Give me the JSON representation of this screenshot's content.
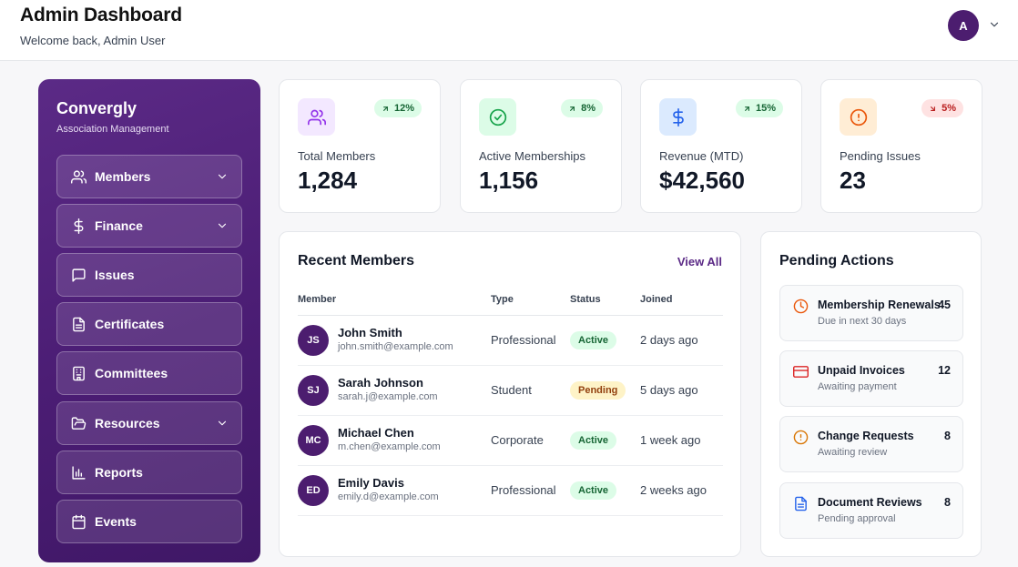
{
  "header": {
    "title": "Admin Dashboard",
    "subtitle": "Welcome back, Admin User",
    "avatar_initial": "A"
  },
  "sidebar": {
    "brand": "Convergly",
    "brand_sub": "Association Management",
    "items": [
      {
        "label": "Members",
        "icon": "users-icon",
        "has_chevron": true
      },
      {
        "label": "Finance",
        "icon": "dollar-icon",
        "has_chevron": true
      },
      {
        "label": "Issues",
        "icon": "message-square-icon",
        "has_chevron": false
      },
      {
        "label": "Certificates",
        "icon": "file-text-icon",
        "has_chevron": false
      },
      {
        "label": "Committees",
        "icon": "building-icon",
        "has_chevron": false
      },
      {
        "label": "Resources",
        "icon": "folder-open-icon",
        "has_chevron": true
      },
      {
        "label": "Reports",
        "icon": "bar-chart-icon",
        "has_chevron": false
      },
      {
        "label": "Events",
        "icon": "calendar-icon",
        "has_chevron": false
      }
    ]
  },
  "stats": [
    {
      "label": "Total Members",
      "value": "1,284",
      "trend": "12%",
      "direction": "up",
      "icon": "users-icon",
      "icon_bg": "#f3e8ff",
      "icon_color": "#9333ea"
    },
    {
      "label": "Active Memberships",
      "value": "1,156",
      "trend": "8%",
      "direction": "up",
      "icon": "check-circle-icon",
      "icon_bg": "#dcfce7",
      "icon_color": "#16a34a"
    },
    {
      "label": "Revenue (MTD)",
      "value": "$42,560",
      "trend": "15%",
      "direction": "up",
      "icon": "dollar-icon",
      "icon_bg": "#dbeafe",
      "icon_color": "#2563eb"
    },
    {
      "label": "Pending Issues",
      "value": "23",
      "trend": "5%",
      "direction": "down",
      "icon": "alert-circle-icon",
      "icon_bg": "#ffedd5",
      "icon_color": "#ea580c"
    }
  ],
  "recent_members": {
    "title": "Recent Members",
    "view_all": "View All",
    "columns": {
      "member": "Member",
      "type": "Type",
      "status": "Status",
      "joined": "Joined"
    },
    "rows": [
      {
        "initials": "JS",
        "name": "John Smith",
        "email": "john.smith@example.com",
        "type": "Professional",
        "status": "Active",
        "joined": "2 days ago"
      },
      {
        "initials": "SJ",
        "name": "Sarah Johnson",
        "email": "sarah.j@example.com",
        "type": "Student",
        "status": "Pending",
        "joined": "5 days ago"
      },
      {
        "initials": "MC",
        "name": "Michael Chen",
        "email": "m.chen@example.com",
        "type": "Corporate",
        "status": "Active",
        "joined": "1 week ago"
      },
      {
        "initials": "ED",
        "name": "Emily Davis",
        "email": "emily.d@example.com",
        "type": "Professional",
        "status": "Active",
        "joined": "2 weeks ago"
      }
    ]
  },
  "pending_actions": {
    "title": "Pending Actions",
    "items": [
      {
        "title": "Membership Renewals",
        "subtitle": "Due in next 30 days",
        "count": "45",
        "icon": "clock-icon",
        "color": "#ea580c"
      },
      {
        "title": "Unpaid Invoices",
        "subtitle": "Awaiting payment",
        "count": "12",
        "icon": "credit-card-icon",
        "color": "#dc2626"
      },
      {
        "title": "Change Requests",
        "subtitle": "Awaiting review",
        "count": "8",
        "icon": "alert-circle-icon",
        "color": "#d97706"
      },
      {
        "title": "Document Reviews",
        "subtitle": "Pending approval",
        "count": "8",
        "icon": "file-text-icon",
        "color": "#2563eb"
      }
    ]
  },
  "colors": {
    "brand": "#4c1d6f",
    "accent": "#5b2a86"
  }
}
